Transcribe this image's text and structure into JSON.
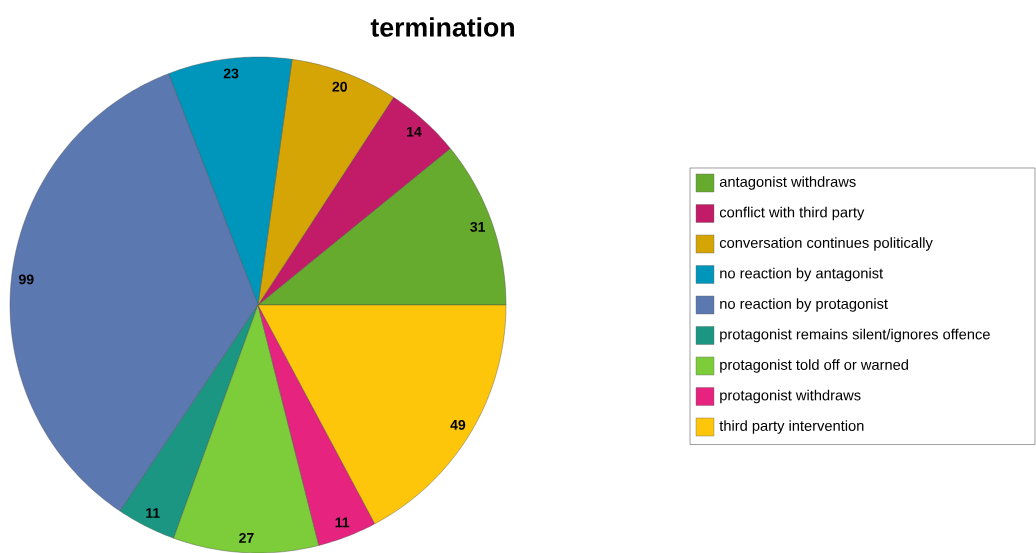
{
  "chart_data": {
    "type": "pie",
    "title": "termination",
    "categories": [
      "antagonist withdraws",
      "conflict with third party",
      "conversation continues politically",
      "no reaction by antagonist",
      "no reaction by protagonist",
      "protagonist remains silent/ignores offence",
      "protagonist told off or warned",
      "protagonist withdraws",
      "third party intervention"
    ],
    "values": [
      31,
      14,
      20,
      23,
      99,
      11,
      27,
      11,
      49
    ],
    "colors": [
      "#66aa2e",
      "#c21c68",
      "#d4a504",
      "#0096bb",
      "#5b78b0",
      "#1a9683",
      "#7dcc3a",
      "#e6237f",
      "#fec60a"
    ],
    "data_labels": true,
    "legend": "right"
  }
}
